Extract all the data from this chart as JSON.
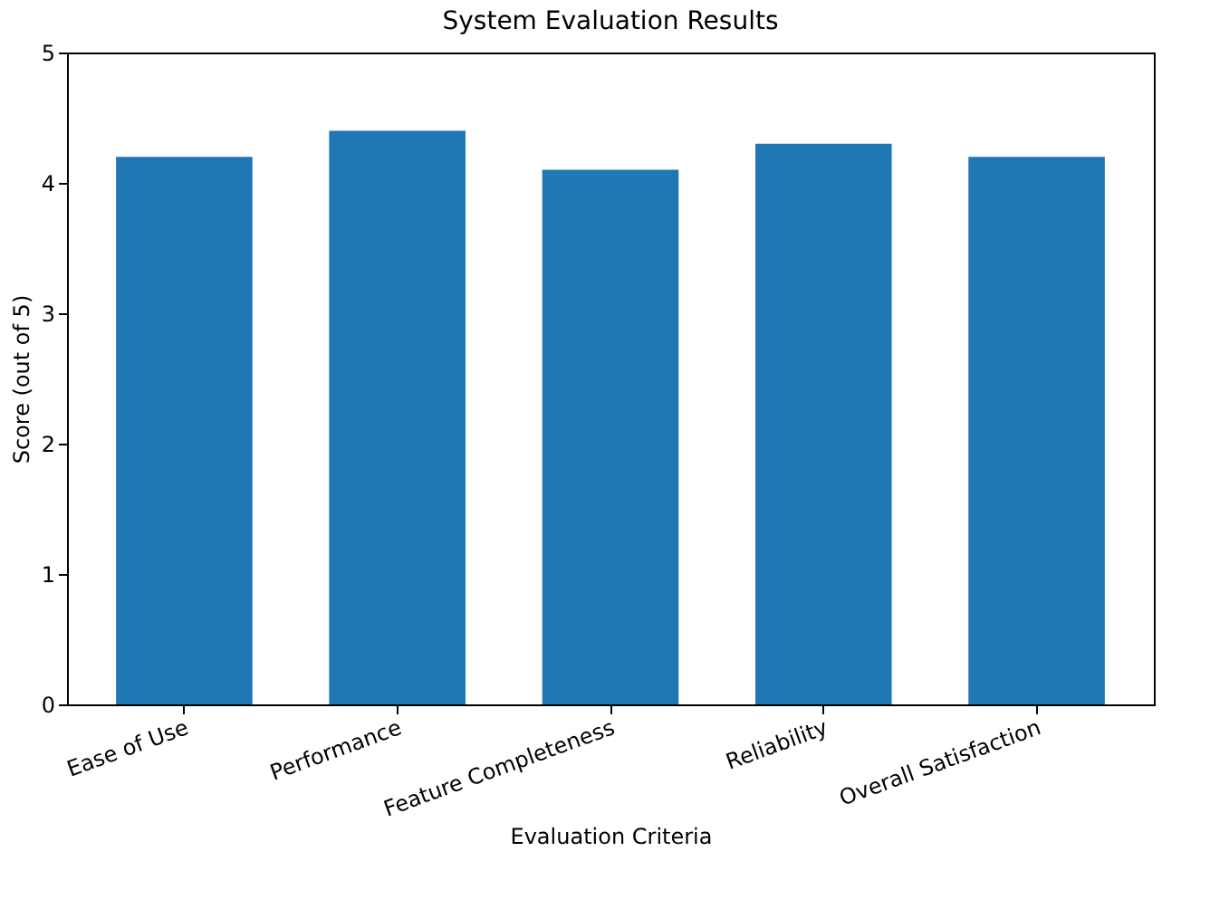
{
  "chart_data": {
    "type": "bar",
    "title": "System Evaluation Results",
    "xlabel": "Evaluation Criteria",
    "ylabel": "Score (out of 5)",
    "categories": [
      "Ease of Use",
      "Performance",
      "Feature Completeness",
      "Reliability",
      "Overall Satisfaction"
    ],
    "values": [
      4.2,
      4.4,
      4.1,
      4.3,
      4.2
    ],
    "color": "#1f77b4",
    "ylim": [
      0,
      5
    ],
    "yticks": [
      0,
      1,
      2,
      3,
      4,
      5
    ],
    "grid": false
  }
}
